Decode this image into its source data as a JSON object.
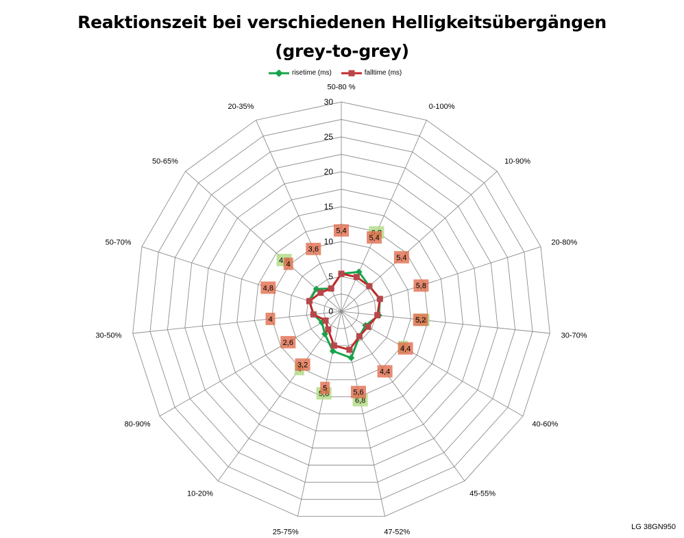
{
  "chart_data": {
    "type": "radar",
    "title": "Reaktionszeit bei verschiedenen Helligkeitsübergängen",
    "subtitle": "(grey-to-grey)",
    "categories": [
      "50-80 %",
      "0-100%",
      "10-90%",
      "20-80%",
      "30-70%",
      "40-60%",
      "45-55%",
      "47-52%",
      "25-75%",
      "10-20%",
      "80-90%",
      "30-50%",
      "50-70%",
      "50-65%",
      "20-35%"
    ],
    "axis": {
      "min": 0,
      "max": 30,
      "ticks": [
        0,
        5,
        10,
        15,
        20,
        25,
        30
      ]
    },
    "series": [
      {
        "name": "risetime (ms)",
        "color": "#17a34a",
        "values": [
          5.4,
          6.2,
          5.4,
          5.8,
          5.4,
          4.0,
          4.4,
          6.8,
          5.8,
          4.0,
          3.2,
          4.0,
          4.8,
          4.8,
          3.6
        ],
        "labels": [
          "",
          "6,2",
          "",
          "",
          "5,4",
          "4",
          "",
          "6,8",
          "5,8",
          "4",
          "",
          "",
          "",
          "4,8",
          ""
        ]
      },
      {
        "name": "falltime (ms)",
        "color": "#c0282b",
        "values": [
          5.4,
          5.4,
          5.4,
          5.8,
          5.2,
          4.4,
          4.4,
          5.6,
          5.0,
          3.2,
          2.6,
          4.0,
          4.8,
          4.0,
          3.6
        ],
        "labels": [
          "5,4",
          "5,4",
          "5,4",
          "5,8",
          "5,2",
          "4,4",
          "4,4",
          "5,6",
          "5",
          "3,2",
          "2,6",
          "4",
          "4,8",
          "4",
          "3,6"
        ]
      }
    ],
    "legend_position": "top",
    "grid": true
  },
  "watermark": "LG 38GN950"
}
